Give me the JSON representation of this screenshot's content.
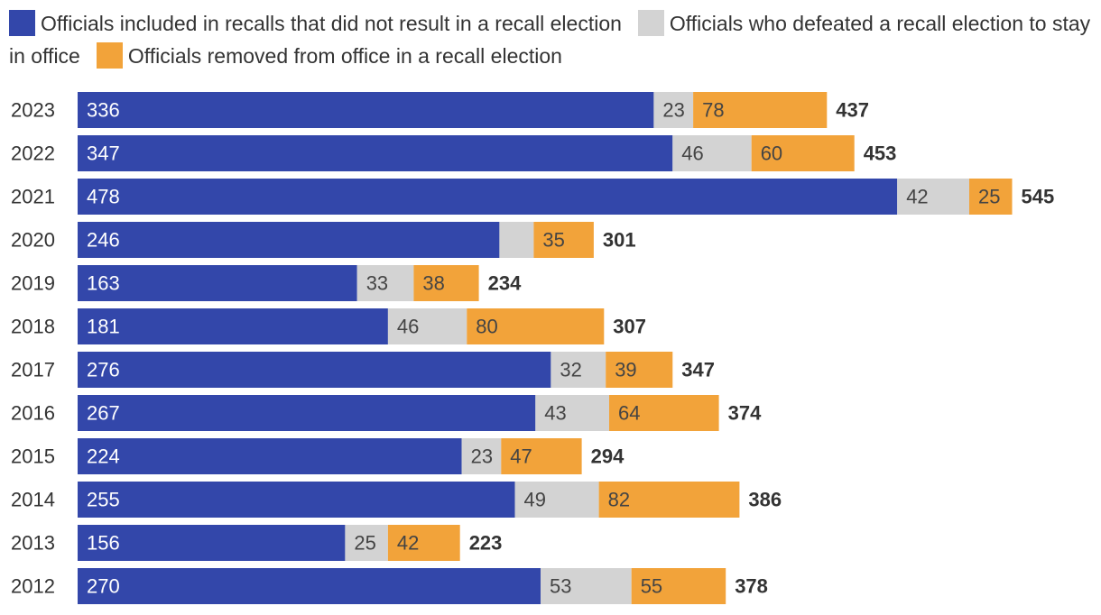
{
  "chart_data": {
    "type": "bar",
    "orientation": "horizontal",
    "stacked": true,
    "title": "",
    "xlabel": "",
    "ylabel": "",
    "xlim": [
      0,
      545
    ],
    "grid": false,
    "legend_position": "top",
    "categories": [
      "2023",
      "2022",
      "2021",
      "2020",
      "2019",
      "2018",
      "2017",
      "2016",
      "2015",
      "2014",
      "2013",
      "2012"
    ],
    "series": [
      {
        "name": "Officials included in recalls that did not result in a recall election",
        "color": "#3347AA",
        "label_color": "#FFFFFF",
        "values": [
          336,
          347,
          478,
          246,
          163,
          181,
          276,
          267,
          224,
          255,
          156,
          270
        ],
        "labels": [
          "336",
          "347",
          "478",
          "246",
          "163",
          "181",
          "276",
          "267",
          "224",
          "255",
          "156",
          "270"
        ]
      },
      {
        "name": "Officials who defeated a recall election to stay in office",
        "color": "#D3D3D3",
        "label_color": "#444444",
        "values": [
          23,
          46,
          42,
          20,
          33,
          46,
          32,
          43,
          23,
          49,
          25,
          53
        ],
        "labels": [
          "23",
          "46",
          "42",
          "",
          "33",
          "46",
          "32",
          "43",
          "23",
          "49",
          "25",
          "53"
        ]
      },
      {
        "name": "Officials removed from office in a recall election",
        "color": "#F2A33A",
        "label_color": "#444444",
        "values": [
          78,
          60,
          25,
          35,
          38,
          80,
          39,
          64,
          47,
          82,
          42,
          55
        ],
        "labels": [
          "78",
          "60",
          "25",
          "35",
          "38",
          "80",
          "39",
          "64",
          "47",
          "82",
          "42",
          "55"
        ]
      }
    ],
    "totals": [
      437,
      453,
      545,
      301,
      234,
      307,
      347,
      374,
      294,
      386,
      223,
      378
    ],
    "total_labels": [
      "437",
      "453",
      "545",
      "301",
      "234",
      "307",
      "347",
      "374",
      "294",
      "386",
      "223",
      "378"
    ]
  }
}
